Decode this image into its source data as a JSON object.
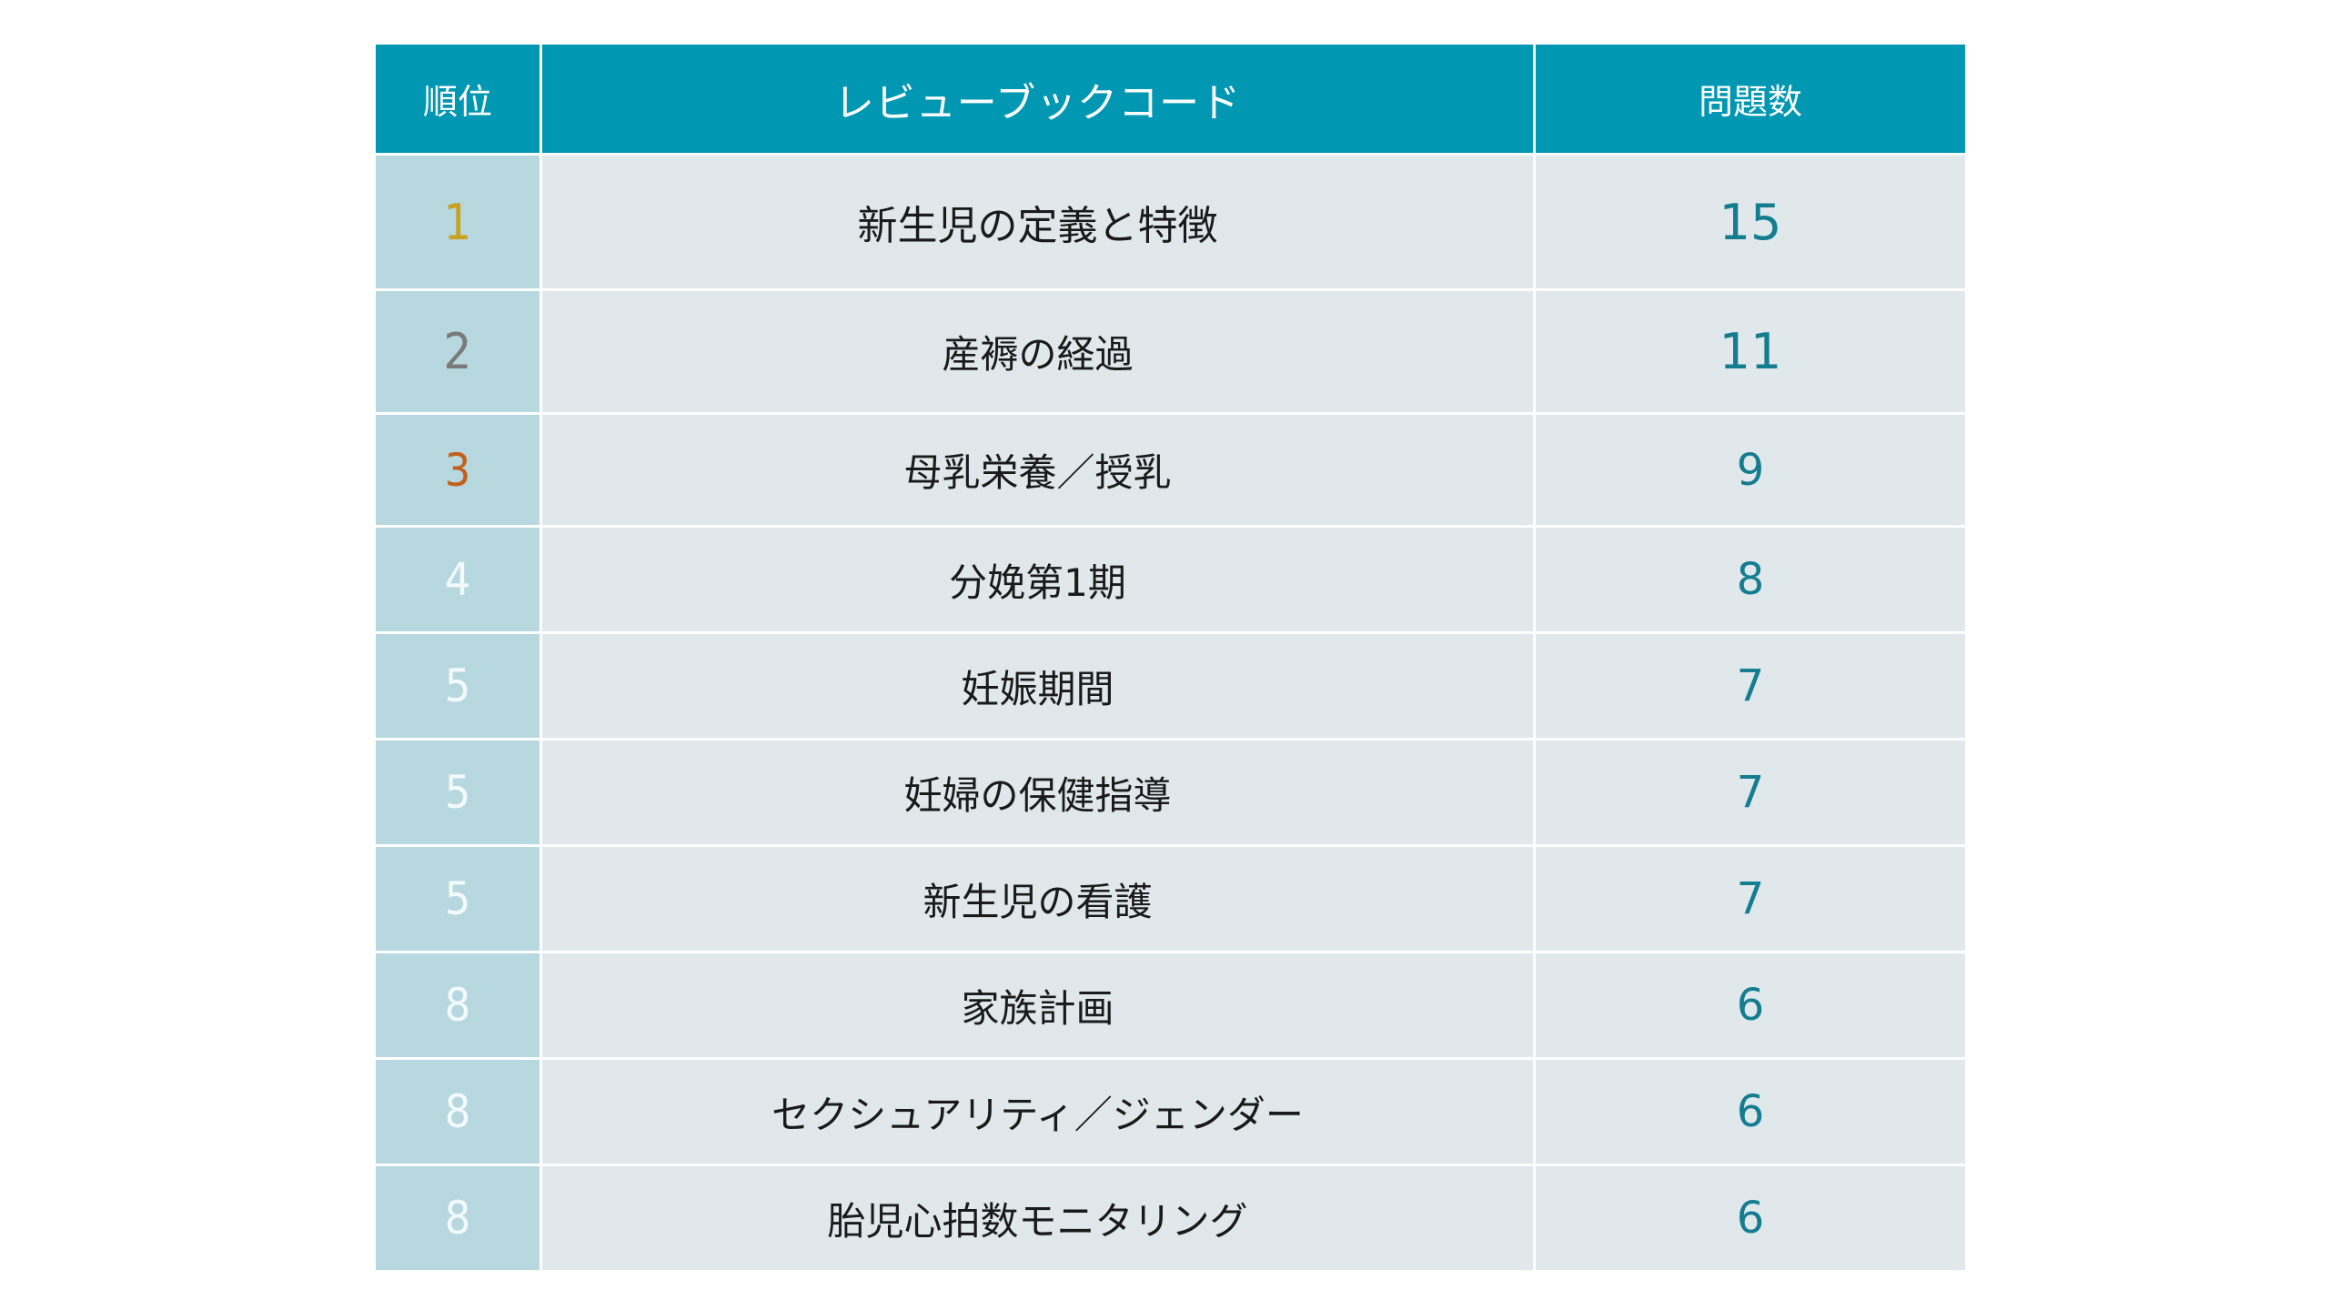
{
  "table": {
    "headers": {
      "rank": "順位",
      "name": "レビューブックコード",
      "count": "問題数"
    },
    "rows": [
      {
        "rank": "1",
        "name": "新生児の定義と特徴",
        "count": "15",
        "rank_color": "#c9a21f"
      },
      {
        "rank": "2",
        "name": "産褥の経過",
        "count": "11",
        "rank_color": "#7a7a7a"
      },
      {
        "rank": "3",
        "name": "母乳栄養／授乳",
        "count": "9",
        "rank_color": "#c4601c"
      },
      {
        "rank": "4",
        "name": "分娩第1期",
        "count": "8",
        "rank_color": "#f3fafb"
      },
      {
        "rank": "5",
        "name": "妊娠期間",
        "count": "7",
        "rank_color": "#f3fafb"
      },
      {
        "rank": "5",
        "name": "妊婦の保健指導",
        "count": "7",
        "rank_color": "#f3fafb"
      },
      {
        "rank": "5",
        "name": "新生児の看護",
        "count": "7",
        "rank_color": "#f3fafb"
      },
      {
        "rank": "8",
        "name": "家族計画",
        "count": "6",
        "rank_color": "#f3fafb"
      },
      {
        "rank": "8",
        "name": "セクシュアリティ／ジェンダー",
        "count": "6",
        "rank_color": "#f3fafb"
      },
      {
        "rank": "8",
        "name": "胎児心拍数モニタリング",
        "count": "6",
        "rank_color": "#f3fafb"
      }
    ]
  },
  "colors": {
    "header_bg": "#0097b2",
    "rank_cell_bg": "#b6d8de",
    "body_cell_bg": "#e0e8ec",
    "count_text": "#147d8f",
    "gold": "#c9a21f",
    "silver": "#7a7a7a",
    "bronze": "#c4601c"
  }
}
